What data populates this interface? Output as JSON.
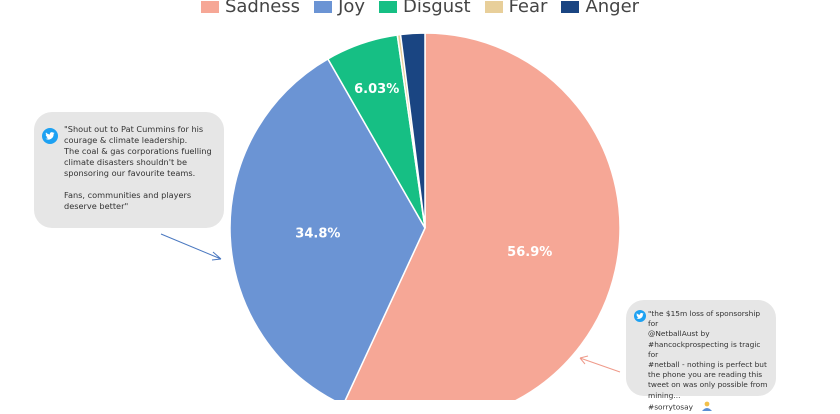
{
  "chart_data": {
    "type": "pie",
    "categories": [
      "Sadness",
      "Joy",
      "Disgust",
      "Fear",
      "Anger"
    ],
    "values": [
      56.9,
      34.8,
      6.03,
      0.27,
      2.0
    ],
    "data_labels": [
      "56.9%",
      "34.8%",
      "6.03%",
      "",
      ""
    ],
    "colors": [
      "#f6a796",
      "#6b94d4",
      "#16bf84",
      "#e8cf9a",
      "#1a4582"
    ],
    "legend_position": "top",
    "start": "12 o'clock, clockwise"
  },
  "annotations": [
    {
      "icon": "twitter-icon",
      "text": "\"Shout out to Pat Cummins for his\ncourage & climate leadership.\nThe coal & gas corporations fuelling\nclimate disasters shouldn't be\nsponsoring our favourite teams.\n\nFans, communities and players\ndeserve better\""
    },
    {
      "icon": "twitter-icon",
      "text": "\"the $15m loss of sponsorship for\n@NetballAust by\n#hancockprospecting is tragic for\n#netball - nothing is perfect but\nthe phone you are reading this\ntweet on was only possible from\nmining...\n#sorrytosay",
      "emoji": "person-shrugging-icon"
    }
  ]
}
